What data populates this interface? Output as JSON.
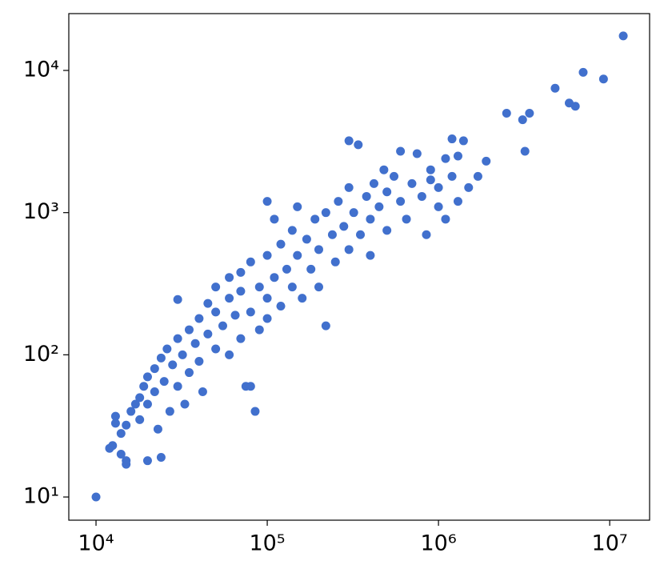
{
  "chart_data": {
    "type": "scatter",
    "color": "#4170cd",
    "xscale": "log",
    "yscale": "log",
    "xlim": [
      6935,
      17100000
    ],
    "ylim": [
      6.87,
      25100
    ],
    "xticks": [
      {
        "value": 10000,
        "label": "10⁴"
      },
      {
        "value": 100000,
        "label": "10⁵"
      },
      {
        "value": 1000000,
        "label": "10⁶"
      },
      {
        "value": 10000000,
        "label": "10⁷"
      }
    ],
    "yticks": [
      {
        "value": 10,
        "label": "10¹"
      },
      {
        "value": 100,
        "label": "10²"
      },
      {
        "value": 1000,
        "label": "10³"
      },
      {
        "value": 10000,
        "label": "10⁴"
      }
    ],
    "x": [
      10000,
      12000,
      12500,
      13000,
      13000,
      14000,
      14000,
      15000,
      15000,
      15000,
      16000,
      17000,
      18000,
      18000,
      19000,
      20000,
      20000,
      20000,
      22000,
      22000,
      23000,
      24000,
      24000,
      25000,
      26000,
      27000,
      28000,
      30000,
      30000,
      30000,
      32000,
      33000,
      35000,
      35000,
      38000,
      40000,
      40000,
      42000,
      45000,
      45000,
      50000,
      50000,
      50000,
      55000,
      60000,
      60000,
      60000,
      65000,
      70000,
      70000,
      70000,
      75000,
      80000,
      80000,
      80000,
      85000,
      90000,
      90000,
      100000,
      100000,
      100000,
      100000,
      110000,
      110000,
      120000,
      120000,
      130000,
      140000,
      140000,
      150000,
      150000,
      160000,
      170000,
      180000,
      190000,
      200000,
      200000,
      220000,
      220000,
      240000,
      250000,
      260000,
      280000,
      300000,
      300000,
      300000,
      320000,
      340000,
      350000,
      380000,
      400000,
      400000,
      420000,
      450000,
      480000,
      500000,
      500000,
      550000,
      600000,
      600000,
      650000,
      700000,
      750000,
      800000,
      850000,
      900000,
      900000,
      1000000,
      1000000,
      1100000,
      1100000,
      1200000,
      1300000,
      1200000,
      1400000,
      1900000,
      1300000,
      1700000,
      1500000,
      2500000,
      3100000,
      3400000,
      3200000,
      4800000,
      5800000,
      6300000,
      7000000,
      9200000,
      12000000
    ],
    "y": [
      10,
      22,
      23,
      33,
      37,
      20,
      28,
      18,
      17,
      32,
      40,
      45,
      50,
      35,
      60,
      18,
      70,
      45,
      55,
      80,
      30,
      19,
      95,
      65,
      110,
      40,
      85,
      130,
      60,
      245,
      100,
      45,
      150,
      75,
      120,
      180,
      90,
      55,
      140,
      230,
      110,
      200,
      300,
      160,
      250,
      100,
      350,
      190,
      130,
      280,
      380,
      60,
      60,
      200,
      450,
      40,
      300,
      150,
      250,
      180,
      1200,
      500,
      350,
      900,
      220,
      600,
      400,
      300,
      750,
      500,
      1100,
      250,
      650,
      400,
      900,
      550,
      300,
      1000,
      160,
      700,
      450,
      1200,
      800,
      3200,
      550,
      1500,
      1000,
      3000,
      700,
      1300,
      500,
      900,
      1600,
      1100,
      2000,
      750,
      1400,
      1800,
      1200,
      2700,
      900,
      1600,
      2600,
      1300,
      700,
      2000,
      1700,
      1500,
      1100,
      2400,
      900,
      1800,
      1200,
      3300,
      3200,
      2300,
      2500,
      1800,
      1500,
      5000,
      4500,
      5000,
      2700,
      7500,
      5900,
      5600,
      9700,
      8700,
      17500
    ]
  }
}
